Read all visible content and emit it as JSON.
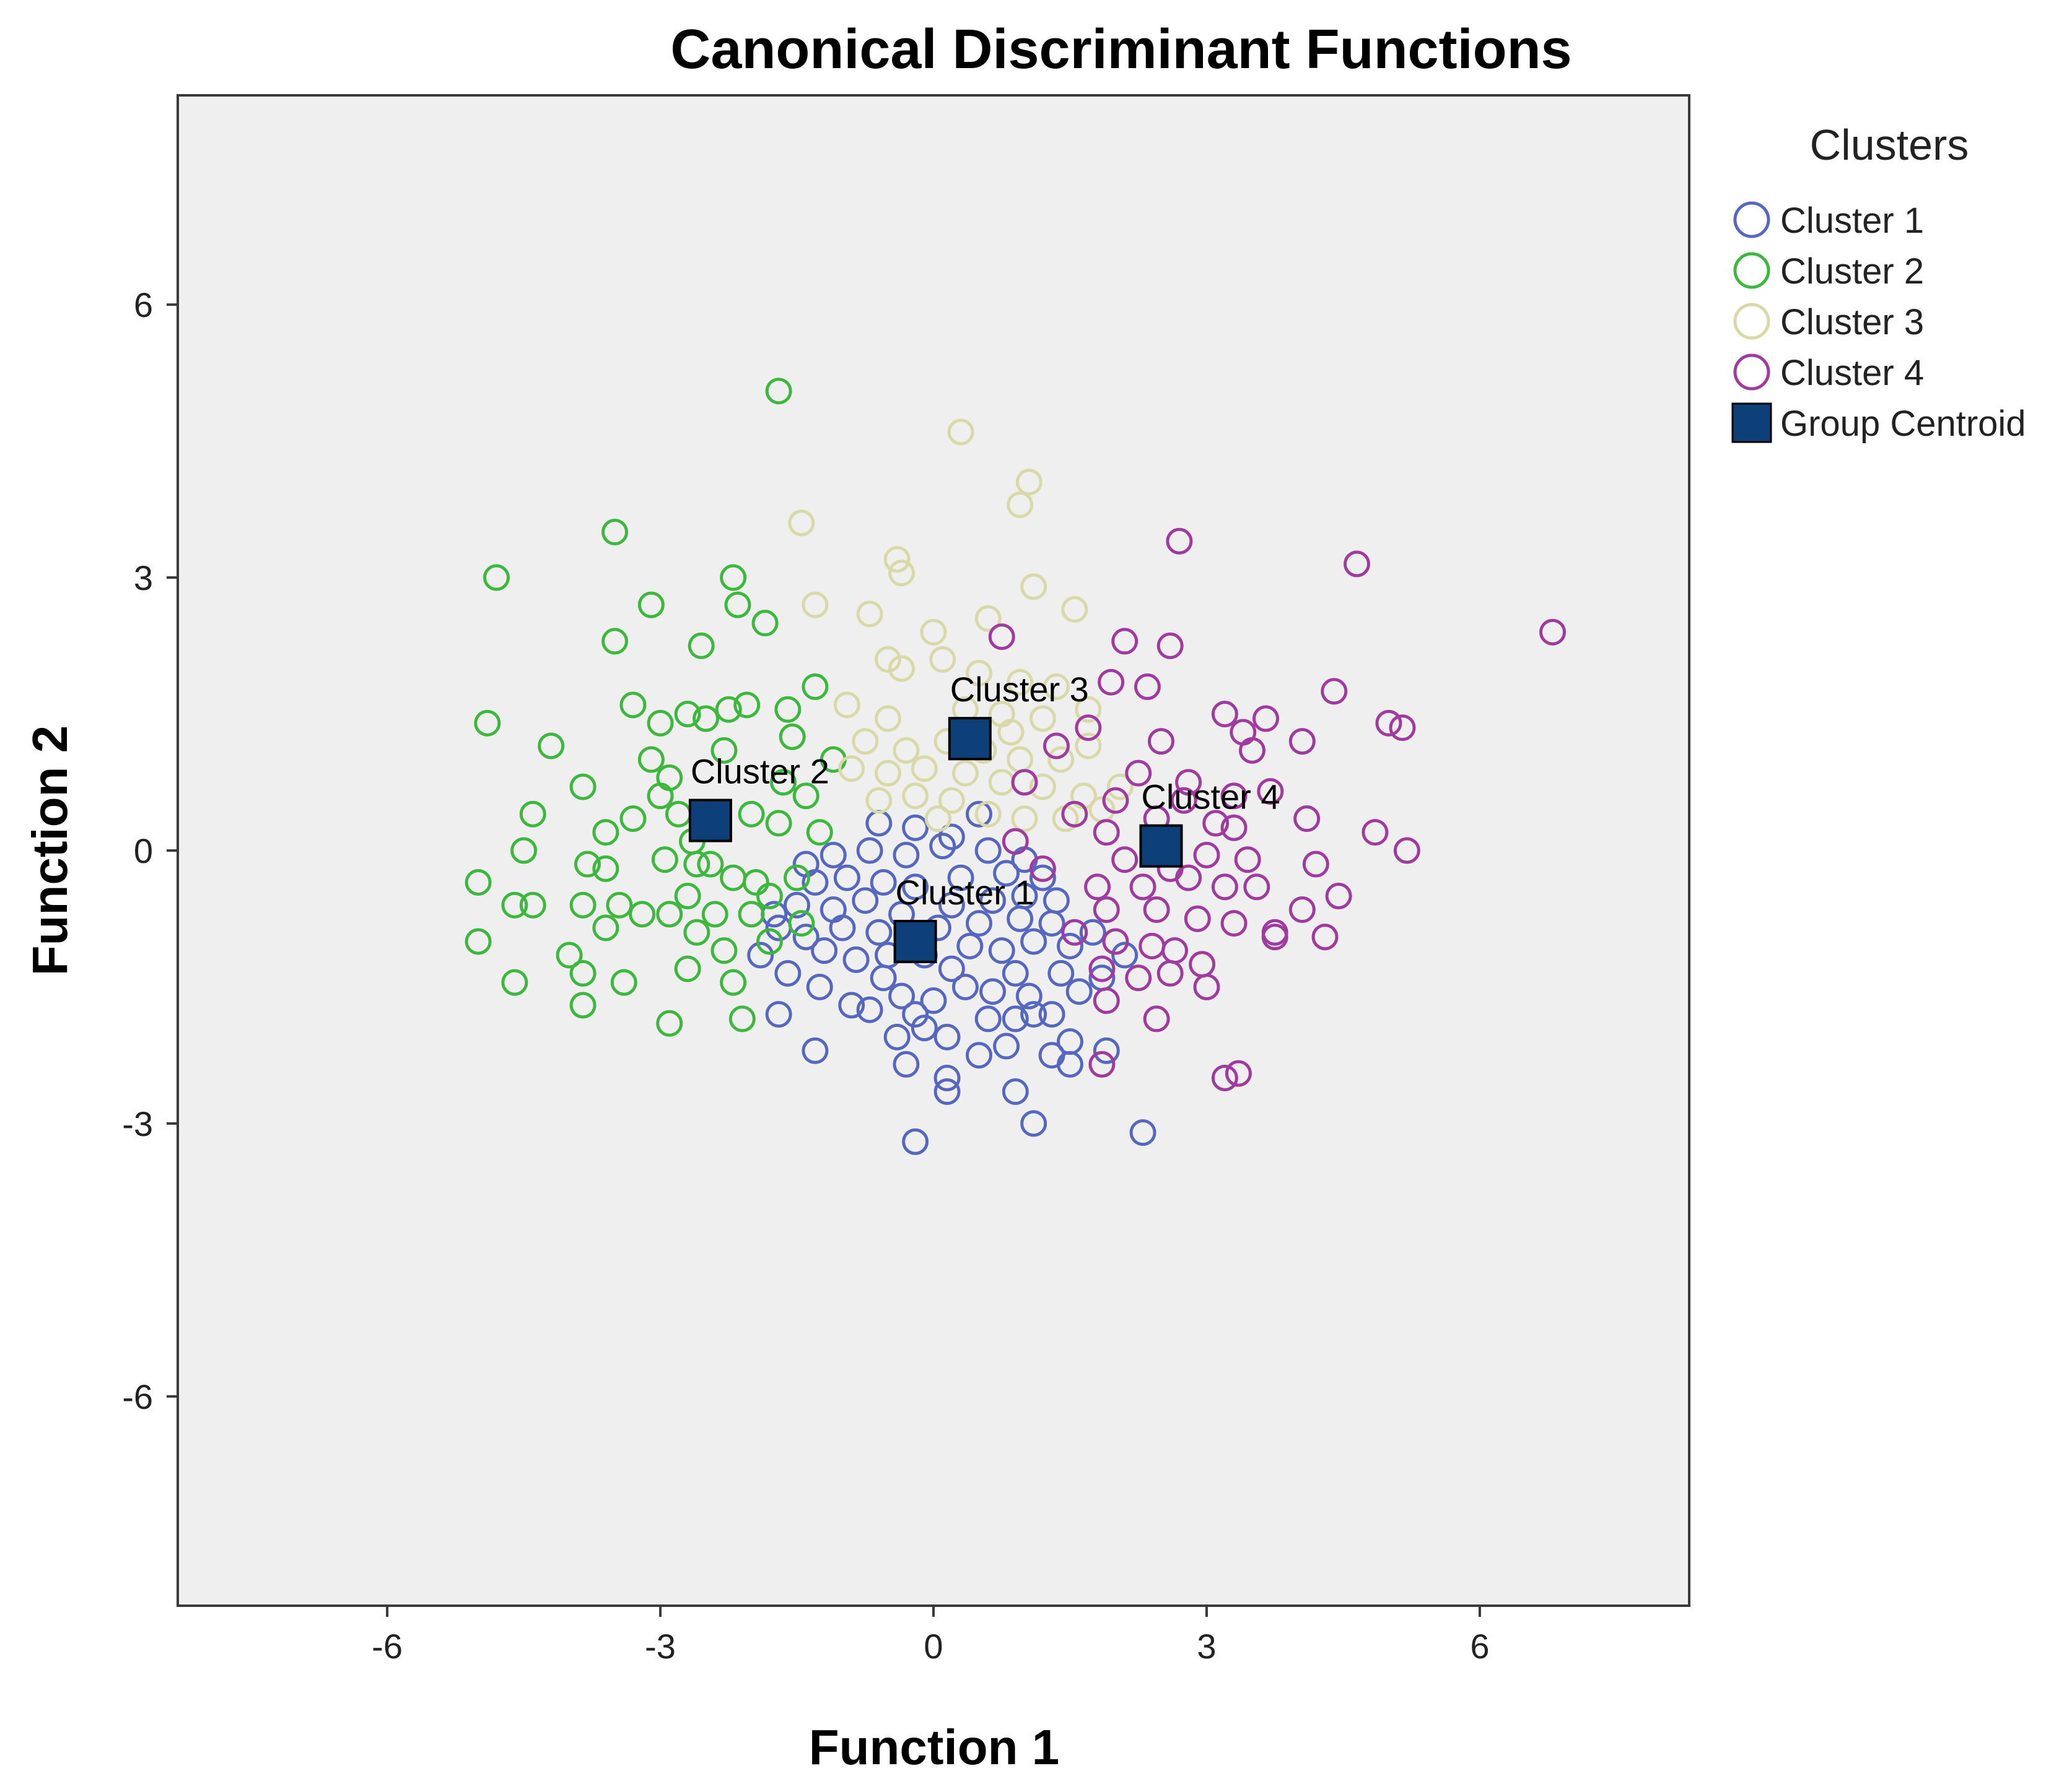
{
  "chart_data": {
    "type": "scatter",
    "title": "Canonical Discriminant Functions",
    "xlabel": "Function 1",
    "ylabel": "Function 2",
    "xlim": [
      -8.3,
      8.3
    ],
    "ylim": [
      -8.3,
      8.3
    ],
    "xticks": [
      "-6",
      "-3",
      "0",
      "3",
      "6"
    ],
    "yticks": [
      "6",
      "3",
      "0",
      "-3",
      "-6"
    ],
    "xtick_values": [
      -6,
      -3,
      0,
      3,
      6
    ],
    "ytick_values": [
      6,
      3,
      0,
      -3,
      -6
    ],
    "grid": false,
    "legend": {
      "title": "Clusters",
      "position": "right",
      "entries": [
        "Cluster 1",
        "Cluster 2",
        "Cluster 3",
        "Cluster 4",
        "Group Centroid"
      ]
    },
    "series": [
      {
        "name": "Cluster 1",
        "color": "#5567c0",
        "marker": "open-circle",
        "points": [
          [
            -0.2,
            -3.2
          ],
          [
            0.15,
            -2.65
          ],
          [
            1.1,
            -3.0
          ],
          [
            2.3,
            -3.1
          ],
          [
            0.9,
            -2.65
          ],
          [
            0.15,
            -2.5
          ],
          [
            -1.3,
            -2.2
          ],
          [
            -0.3,
            -2.35
          ],
          [
            0.5,
            -2.25
          ],
          [
            1.3,
            -2.25
          ],
          [
            1.5,
            -2.1
          ],
          [
            1.9,
            -2.2
          ],
          [
            1.5,
            -2.35
          ],
          [
            -0.4,
            -2.05
          ],
          [
            -0.1,
            -1.95
          ],
          [
            0.15,
            -2.05
          ],
          [
            0.8,
            -2.15
          ],
          [
            -0.2,
            -1.8
          ],
          [
            0.6,
            -1.85
          ],
          [
            1.1,
            -1.8
          ],
          [
            1.3,
            -1.8
          ],
          [
            -1.7,
            -1.8
          ],
          [
            -0.9,
            -1.7
          ],
          [
            -0.7,
            -1.75
          ],
          [
            -0.35,
            -1.6
          ],
          [
            0.0,
            -1.65
          ],
          [
            0.35,
            -1.5
          ],
          [
            0.65,
            -1.55
          ],
          [
            1.05,
            -1.6
          ],
          [
            1.6,
            -1.55
          ],
          [
            -1.6,
            -1.35
          ],
          [
            -1.25,
            -1.5
          ],
          [
            -0.55,
            -1.4
          ],
          [
            0.2,
            -1.3
          ],
          [
            0.9,
            -1.35
          ],
          [
            1.4,
            -1.35
          ],
          [
            1.85,
            -1.4
          ],
          [
            -1.9,
            -1.15
          ],
          [
            -1.2,
            -1.1
          ],
          [
            -0.85,
            -1.2
          ],
          [
            -0.5,
            -1.15
          ],
          [
            -0.1,
            -1.15
          ],
          [
            0.4,
            -1.05
          ],
          [
            0.75,
            -1.1
          ],
          [
            1.1,
            -1.0
          ],
          [
            1.5,
            -1.05
          ],
          [
            2.1,
            -1.15
          ],
          [
            -1.7,
            -0.85
          ],
          [
            -1.4,
            -0.95
          ],
          [
            -1.0,
            -0.85
          ],
          [
            -0.6,
            -0.9
          ],
          [
            0.05,
            -0.85
          ],
          [
            0.5,
            -0.8
          ],
          [
            0.95,
            -0.75
          ],
          [
            1.3,
            -0.8
          ],
          [
            1.75,
            -0.9
          ],
          [
            -1.5,
            -0.6
          ],
          [
            -1.1,
            -0.65
          ],
          [
            -0.75,
            -0.55
          ],
          [
            -0.35,
            -0.7
          ],
          [
            0.2,
            -0.6
          ],
          [
            0.65,
            -0.55
          ],
          [
            1.0,
            -0.5
          ],
          [
            1.35,
            -0.55
          ],
          [
            -1.3,
            -0.35
          ],
          [
            -0.95,
            -0.3
          ],
          [
            -0.55,
            -0.35
          ],
          [
            -0.2,
            -0.4
          ],
          [
            0.3,
            -0.3
          ],
          [
            0.8,
            -0.25
          ],
          [
            1.2,
            -0.3
          ],
          [
            -1.1,
            -0.05
          ],
          [
            -0.7,
            0.0
          ],
          [
            -0.3,
            -0.05
          ],
          [
            0.1,
            0.05
          ],
          [
            0.6,
            0.0
          ],
          [
            1.0,
            -0.1
          ],
          [
            -0.6,
            0.3
          ],
          [
            -0.2,
            0.25
          ],
          [
            0.2,
            0.15
          ],
          [
            0.5,
            0.4
          ],
          [
            -1.4,
            -0.15
          ],
          [
            -1.75,
            -0.7
          ],
          [
            0.9,
            -1.85
          ]
        ]
      },
      {
        "name": "Cluster 2",
        "color": "#3cb83c",
        "marker": "open-circle",
        "points": [
          [
            -1.7,
            5.05
          ],
          [
            -4.8,
            3.0
          ],
          [
            -3.5,
            3.5
          ],
          [
            -3.1,
            2.7
          ],
          [
            -2.2,
            3.0
          ],
          [
            -2.15,
            2.7
          ],
          [
            -1.85,
            2.5
          ],
          [
            -3.5,
            2.3
          ],
          [
            -2.55,
            2.25
          ],
          [
            -4.9,
            1.4
          ],
          [
            -4.2,
            1.15
          ],
          [
            -3.3,
            1.6
          ],
          [
            -3.0,
            1.4
          ],
          [
            -2.7,
            1.5
          ],
          [
            -2.5,
            1.45
          ],
          [
            -2.25,
            1.55
          ],
          [
            -2.05,
            1.6
          ],
          [
            -1.6,
            1.55
          ],
          [
            -1.3,
            1.8
          ],
          [
            -3.85,
            0.7
          ],
          [
            -3.1,
            1.0
          ],
          [
            -2.9,
            0.8
          ],
          [
            -3.6,
            0.2
          ],
          [
            -3.3,
            0.35
          ],
          [
            -2.8,
            0.4
          ],
          [
            -4.4,
            0.4
          ],
          [
            -4.5,
            0.0
          ],
          [
            -3.8,
            -0.15
          ],
          [
            -3.6,
            -0.2
          ],
          [
            -2.95,
            -0.1
          ],
          [
            -2.6,
            -0.15
          ],
          [
            -2.2,
            -0.3
          ],
          [
            -1.95,
            -0.35
          ],
          [
            -5.0,
            -0.35
          ],
          [
            -4.6,
            -0.6
          ],
          [
            -4.4,
            -0.6
          ],
          [
            -3.85,
            -0.6
          ],
          [
            -3.45,
            -0.6
          ],
          [
            -3.2,
            -0.7
          ],
          [
            -2.9,
            -0.7
          ],
          [
            -2.7,
            -0.5
          ],
          [
            -2.4,
            -0.7
          ],
          [
            -2.0,
            -0.7
          ],
          [
            -3.6,
            -0.85
          ],
          [
            -2.6,
            -0.9
          ],
          [
            -2.3,
            -1.1
          ],
          [
            -1.8,
            -1.0
          ],
          [
            -5.0,
            -1.0
          ],
          [
            -4.0,
            -1.15
          ],
          [
            -3.85,
            -1.35
          ],
          [
            -3.4,
            -1.45
          ],
          [
            -2.7,
            -1.3
          ],
          [
            -2.2,
            -1.45
          ],
          [
            -4.6,
            -1.45
          ],
          [
            -3.85,
            -1.7
          ],
          [
            -2.9,
            -1.9
          ],
          [
            -2.1,
            -1.85
          ],
          [
            -1.5,
            -0.3
          ],
          [
            -1.7,
            0.3
          ],
          [
            -1.4,
            0.6
          ],
          [
            -1.1,
            1.0
          ],
          [
            -1.55,
            1.25
          ],
          [
            -2.0,
            0.4
          ],
          [
            -2.3,
            1.1
          ],
          [
            -2.65,
            0.1
          ],
          [
            -1.25,
            0.2
          ],
          [
            -1.8,
            -0.5
          ],
          [
            -2.45,
            -0.15
          ],
          [
            -3.0,
            0.6
          ],
          [
            -1.45,
            -0.8
          ],
          [
            -1.65,
            0.75
          ]
        ]
      },
      {
        "name": "Cluster 3",
        "color": "#d9d9a8",
        "marker": "open-circle",
        "points": [
          [
            0.3,
            4.6
          ],
          [
            1.05,
            4.05
          ],
          [
            0.95,
            3.8
          ],
          [
            -1.45,
            3.6
          ],
          [
            -0.4,
            3.2
          ],
          [
            -0.35,
            3.05
          ],
          [
            1.1,
            2.9
          ],
          [
            -1.3,
            2.7
          ],
          [
            -0.7,
            2.6
          ],
          [
            0.6,
            2.55
          ],
          [
            1.55,
            2.65
          ],
          [
            0.0,
            2.4
          ],
          [
            -0.5,
            2.1
          ],
          [
            -0.35,
            2.0
          ],
          [
            0.1,
            2.1
          ],
          [
            0.5,
            1.95
          ],
          [
            0.95,
            1.85
          ],
          [
            1.35,
            1.8
          ],
          [
            -0.95,
            1.6
          ],
          [
            -0.5,
            1.45
          ],
          [
            0.35,
            1.55
          ],
          [
            0.75,
            1.5
          ],
          [
            1.2,
            1.45
          ],
          [
            1.7,
            1.55
          ],
          [
            -0.75,
            1.2
          ],
          [
            -0.3,
            1.1
          ],
          [
            0.15,
            1.2
          ],
          [
            0.55,
            1.1
          ],
          [
            0.95,
            1.0
          ],
          [
            1.4,
            1.0
          ],
          [
            -0.5,
            0.85
          ],
          [
            -0.1,
            0.9
          ],
          [
            0.35,
            0.85
          ],
          [
            0.75,
            0.75
          ],
          [
            1.2,
            0.7
          ],
          [
            1.65,
            0.6
          ],
          [
            -0.6,
            0.55
          ],
          [
            -0.2,
            0.6
          ],
          [
            0.2,
            0.55
          ],
          [
            0.6,
            0.4
          ],
          [
            1.0,
            0.35
          ],
          [
            1.45,
            0.35
          ],
          [
            1.85,
            0.45
          ],
          [
            2.05,
            0.7
          ],
          [
            1.7,
            1.15
          ],
          [
            -0.9,
            0.9
          ],
          [
            0.05,
            0.35
          ],
          [
            0.85,
            1.3
          ]
        ]
      },
      {
        "name": "Cluster 4",
        "color": "#a03aa0",
        "marker": "open-circle",
        "points": [
          [
            6.8,
            2.4
          ],
          [
            2.7,
            3.4
          ],
          [
            4.65,
            3.15
          ],
          [
            2.6,
            2.25
          ],
          [
            2.1,
            2.3
          ],
          [
            0.75,
            2.35
          ],
          [
            4.4,
            1.75
          ],
          [
            1.95,
            1.85
          ],
          [
            2.35,
            1.8
          ],
          [
            3.2,
            1.5
          ],
          [
            3.4,
            1.3
          ],
          [
            3.65,
            1.45
          ],
          [
            4.05,
            1.2
          ],
          [
            5.0,
            1.4
          ],
          [
            5.15,
            1.35
          ],
          [
            1.7,
            1.35
          ],
          [
            2.5,
            1.2
          ],
          [
            3.5,
            1.1
          ],
          [
            2.25,
            0.85
          ],
          [
            2.8,
            0.75
          ],
          [
            3.3,
            0.6
          ],
          [
            3.7,
            0.65
          ],
          [
            4.1,
            0.35
          ],
          [
            1.55,
            0.4
          ],
          [
            1.9,
            0.2
          ],
          [
            2.45,
            0.35
          ],
          [
            3.1,
            0.3
          ],
          [
            3.3,
            0.25
          ],
          [
            4.85,
            0.2
          ],
          [
            5.2,
            0.0
          ],
          [
            2.1,
            -0.1
          ],
          [
            2.6,
            -0.2
          ],
          [
            3.0,
            -0.05
          ],
          [
            3.45,
            -0.1
          ],
          [
            4.2,
            -0.15
          ],
          [
            1.8,
            -0.4
          ],
          [
            2.3,
            -0.4
          ],
          [
            2.8,
            -0.3
          ],
          [
            3.2,
            -0.4
          ],
          [
            3.55,
            -0.4
          ],
          [
            4.45,
            -0.5
          ],
          [
            1.9,
            -0.65
          ],
          [
            2.45,
            -0.65
          ],
          [
            2.9,
            -0.75
          ],
          [
            3.3,
            -0.8
          ],
          [
            3.75,
            -0.9
          ],
          [
            4.05,
            -0.65
          ],
          [
            4.3,
            -0.95
          ],
          [
            2.0,
            -1.0
          ],
          [
            2.4,
            -1.05
          ],
          [
            2.65,
            -1.1
          ],
          [
            2.95,
            -1.25
          ],
          [
            3.75,
            -0.95
          ],
          [
            1.85,
            -1.3
          ],
          [
            2.25,
            -1.4
          ],
          [
            2.6,
            -1.35
          ],
          [
            3.0,
            -1.5
          ],
          [
            1.9,
            -1.65
          ],
          [
            2.45,
            -1.85
          ],
          [
            1.85,
            -2.35
          ],
          [
            3.2,
            -2.5
          ],
          [
            3.35,
            -2.45
          ],
          [
            1.2,
            -0.2
          ],
          [
            1.55,
            -0.9
          ],
          [
            0.9,
            0.1
          ],
          [
            1.35,
            1.15
          ],
          [
            1.0,
            0.75
          ],
          [
            2.0,
            0.55
          ],
          [
            2.75,
            0.55
          ]
        ]
      }
    ],
    "centroids": [
      {
        "name": "Cluster 1",
        "label": "Cluster 1",
        "x": -0.2,
        "y": -1.0
      },
      {
        "name": "Cluster 2",
        "label": "Cluster 2",
        "x": -2.45,
        "y": 0.33
      },
      {
        "name": "Cluster 3",
        "label": "Cluster 3",
        "x": 0.4,
        "y": 1.23
      },
      {
        "name": "Cluster 4",
        "label": "Cluster 4",
        "x": 2.5,
        "y": 0.05
      }
    ],
    "centroid_style": {
      "name": "Group Centroid",
      "color": "#0d3f78"
    }
  }
}
